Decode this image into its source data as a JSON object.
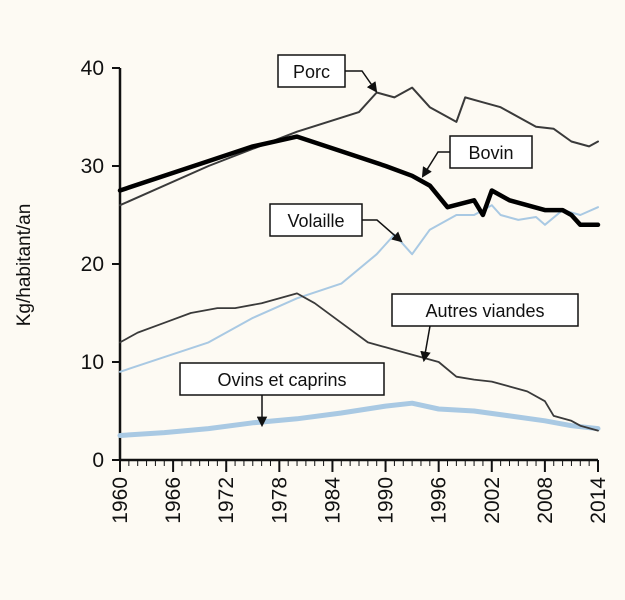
{
  "chart_data": {
    "type": "line",
    "ylabel": "Kg/habitant/an",
    "xlabel": "",
    "ylim": [
      0,
      40
    ],
    "xlim": [
      1960,
      2014
    ],
    "yticks": [
      0,
      10,
      20,
      30,
      40
    ],
    "xticks": [
      1960,
      1966,
      1972,
      1978,
      1984,
      1990,
      1996,
      2002,
      2008,
      2014
    ],
    "colors": {
      "porc": "#3a3a3a",
      "bovin": "#000000",
      "volaille": "#a9c9e3",
      "autres": "#3a3a3a",
      "ovins": "#a9c9e3"
    },
    "series": [
      {
        "key": "porc",
        "name": "Porc",
        "points": [
          [
            1960,
            26
          ],
          [
            1970,
            30
          ],
          [
            1980,
            33.5
          ],
          [
            1987,
            35.5
          ],
          [
            1989,
            37.5
          ],
          [
            1991,
            37
          ],
          [
            1993,
            38
          ],
          [
            1995,
            36
          ],
          [
            1996,
            35.5
          ],
          [
            1998,
            34.5
          ],
          [
            1999,
            37
          ],
          [
            2001,
            36.5
          ],
          [
            2003,
            36
          ],
          [
            2005,
            35
          ],
          [
            2007,
            34
          ],
          [
            2009,
            33.8
          ],
          [
            2011,
            32.5
          ],
          [
            2013,
            32
          ],
          [
            2014,
            32.5
          ]
        ]
      },
      {
        "key": "bovin",
        "name": "Bovin",
        "points": [
          [
            1960,
            27.5
          ],
          [
            1965,
            29
          ],
          [
            1970,
            30.5
          ],
          [
            1975,
            32
          ],
          [
            1980,
            33
          ],
          [
            1985,
            31.5
          ],
          [
            1990,
            30
          ],
          [
            1993,
            29
          ],
          [
            1995,
            28
          ],
          [
            1997,
            25.8
          ],
          [
            2000,
            26.5
          ],
          [
            2001,
            25
          ],
          [
            2002,
            27.5
          ],
          [
            2004,
            26.5
          ],
          [
            2006,
            26
          ],
          [
            2008,
            25.5
          ],
          [
            2010,
            25.5
          ],
          [
            2011,
            25
          ],
          [
            2012,
            24
          ],
          [
            2014,
            24
          ]
        ]
      },
      {
        "key": "volaille",
        "name": "Volaille",
        "points": [
          [
            1960,
            9
          ],
          [
            1965,
            10.5
          ],
          [
            1970,
            12
          ],
          [
            1975,
            14.5
          ],
          [
            1980,
            16.5
          ],
          [
            1985,
            18
          ],
          [
            1989,
            21
          ],
          [
            1991,
            23
          ],
          [
            1993,
            21
          ],
          [
            1995,
            23.5
          ],
          [
            1998,
            25
          ],
          [
            2000,
            25
          ],
          [
            2002,
            26
          ],
          [
            2003,
            25
          ],
          [
            2005,
            24.5
          ],
          [
            2007,
            24.8
          ],
          [
            2008,
            24
          ],
          [
            2010,
            25.5
          ],
          [
            2012,
            25
          ],
          [
            2014,
            25.8
          ]
        ]
      },
      {
        "key": "autres",
        "name": "Autres viandes",
        "points": [
          [
            1960,
            12
          ],
          [
            1962,
            13
          ],
          [
            1965,
            14
          ],
          [
            1968,
            15
          ],
          [
            1971,
            15.5
          ],
          [
            1973,
            15.5
          ],
          [
            1976,
            16
          ],
          [
            1980,
            17
          ],
          [
            1982,
            16
          ],
          [
            1985,
            14
          ],
          [
            1988,
            12
          ],
          [
            1990,
            11.5
          ],
          [
            1992,
            11
          ],
          [
            1994,
            10.5
          ],
          [
            1996,
            10
          ],
          [
            1998,
            8.5
          ],
          [
            2000,
            8.2
          ],
          [
            2002,
            8
          ],
          [
            2004,
            7.5
          ],
          [
            2006,
            7
          ],
          [
            2008,
            6
          ],
          [
            2009,
            4.5
          ],
          [
            2011,
            4
          ],
          [
            2012,
            3.5
          ],
          [
            2014,
            3
          ]
        ]
      },
      {
        "key": "ovins",
        "name": "Ovins et caprins",
        "points": [
          [
            1960,
            2.5
          ],
          [
            1965,
            2.8
          ],
          [
            1970,
            3.2
          ],
          [
            1975,
            3.8
          ],
          [
            1980,
            4.2
          ],
          [
            1985,
            4.8
          ],
          [
            1990,
            5.5
          ],
          [
            1993,
            5.8
          ],
          [
            1996,
            5.2
          ],
          [
            2000,
            5
          ],
          [
            2004,
            4.5
          ],
          [
            2008,
            4
          ],
          [
            2011,
            3.5
          ],
          [
            2014,
            3.2
          ]
        ]
      }
    ],
    "annotations": [
      {
        "key": "porc",
        "text": "Porc"
      },
      {
        "key": "bovin",
        "text": "Bovin"
      },
      {
        "key": "volaille",
        "text": "Volaille"
      },
      {
        "key": "autres",
        "text": "Autres viandes"
      },
      {
        "key": "ovins",
        "text": "Ovins et caprins"
      }
    ]
  }
}
